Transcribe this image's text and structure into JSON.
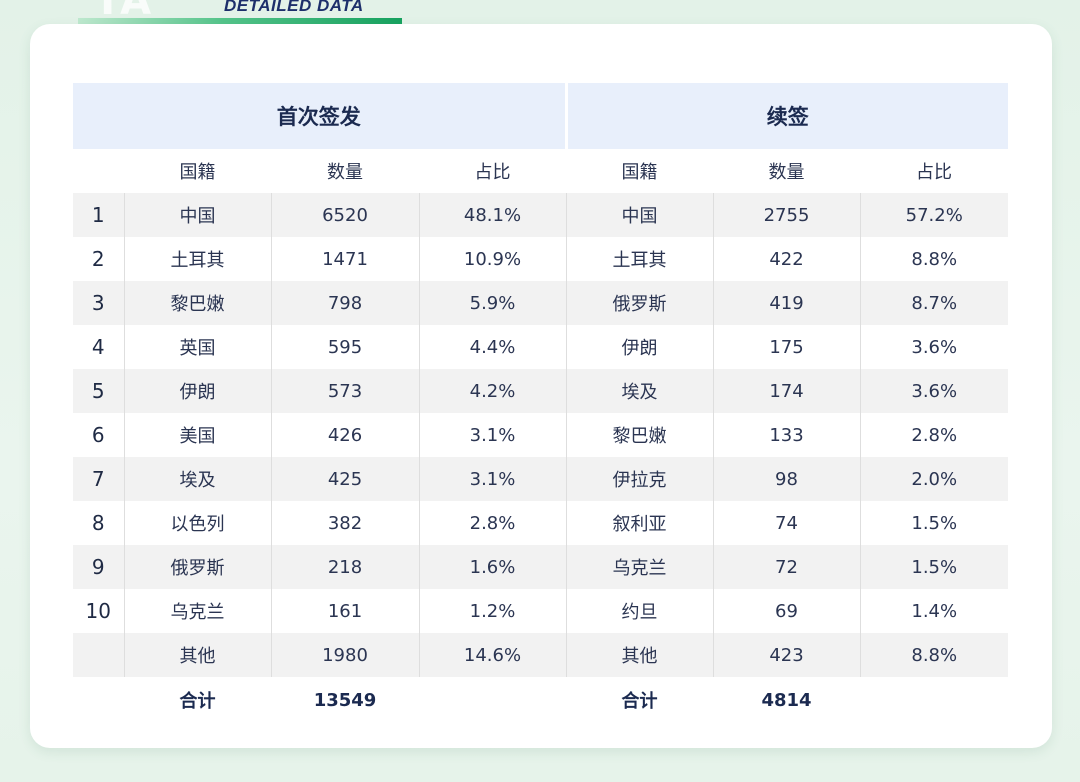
{
  "header": {
    "big_text": "TA",
    "label": "DETAILED DATA"
  },
  "table": {
    "groups": {
      "first": "首次签发",
      "renew": "续签"
    },
    "columns": {
      "first": {
        "nationality": "国籍",
        "count": "数量",
        "share": "占比"
      },
      "renew": {
        "nationality": "国籍",
        "count": "数量",
        "share": "占比"
      }
    },
    "rows": [
      {
        "rank": "1",
        "first": {
          "nationality": "中国",
          "count": "6520",
          "share": "48.1%"
        },
        "renew": {
          "nationality": "中国",
          "count": "2755",
          "share": "57.2%"
        }
      },
      {
        "rank": "2",
        "first": {
          "nationality": "土耳其",
          "count": "1471",
          "share": "10.9%"
        },
        "renew": {
          "nationality": "土耳其",
          "count": "422",
          "share": "8.8%"
        }
      },
      {
        "rank": "3",
        "first": {
          "nationality": "黎巴嫩",
          "count": "798",
          "share": "5.9%"
        },
        "renew": {
          "nationality": "俄罗斯",
          "count": "419",
          "share": "8.7%"
        }
      },
      {
        "rank": "4",
        "first": {
          "nationality": "英国",
          "count": "595",
          "share": "4.4%"
        },
        "renew": {
          "nationality": "伊朗",
          "count": "175",
          "share": "3.6%"
        }
      },
      {
        "rank": "5",
        "first": {
          "nationality": "伊朗",
          "count": "573",
          "share": "4.2%"
        },
        "renew": {
          "nationality": "埃及",
          "count": "174",
          "share": "3.6%"
        }
      },
      {
        "rank": "6",
        "first": {
          "nationality": "美国",
          "count": "426",
          "share": "3.1%"
        },
        "renew": {
          "nationality": "黎巴嫩",
          "count": "133",
          "share": "2.8%"
        }
      },
      {
        "rank": "7",
        "first": {
          "nationality": "埃及",
          "count": "425",
          "share": "3.1%"
        },
        "renew": {
          "nationality": "伊拉克",
          "count": "98",
          "share": "2.0%"
        }
      },
      {
        "rank": "8",
        "first": {
          "nationality": "以色列",
          "count": "382",
          "share": "2.8%"
        },
        "renew": {
          "nationality": "叙利亚",
          "count": "74",
          "share": "1.5%"
        }
      },
      {
        "rank": "9",
        "first": {
          "nationality": "俄罗斯",
          "count": "218",
          "share": "1.6%"
        },
        "renew": {
          "nationality": "乌克兰",
          "count": "72",
          "share": "1.5%"
        }
      },
      {
        "rank": "10",
        "first": {
          "nationality": "乌克兰",
          "count": "161",
          "share": "1.2%"
        },
        "renew": {
          "nationality": "约旦",
          "count": "69",
          "share": "1.4%"
        }
      },
      {
        "rank": "",
        "first": {
          "nationality": "其他",
          "count": "1980",
          "share": "14.6%"
        },
        "renew": {
          "nationality": "其他",
          "count": "423",
          "share": "8.8%"
        }
      }
    ],
    "totals": {
      "first": {
        "label": "合计",
        "value": "13549"
      },
      "renew": {
        "label": "合计",
        "value": "4814"
      }
    }
  }
}
